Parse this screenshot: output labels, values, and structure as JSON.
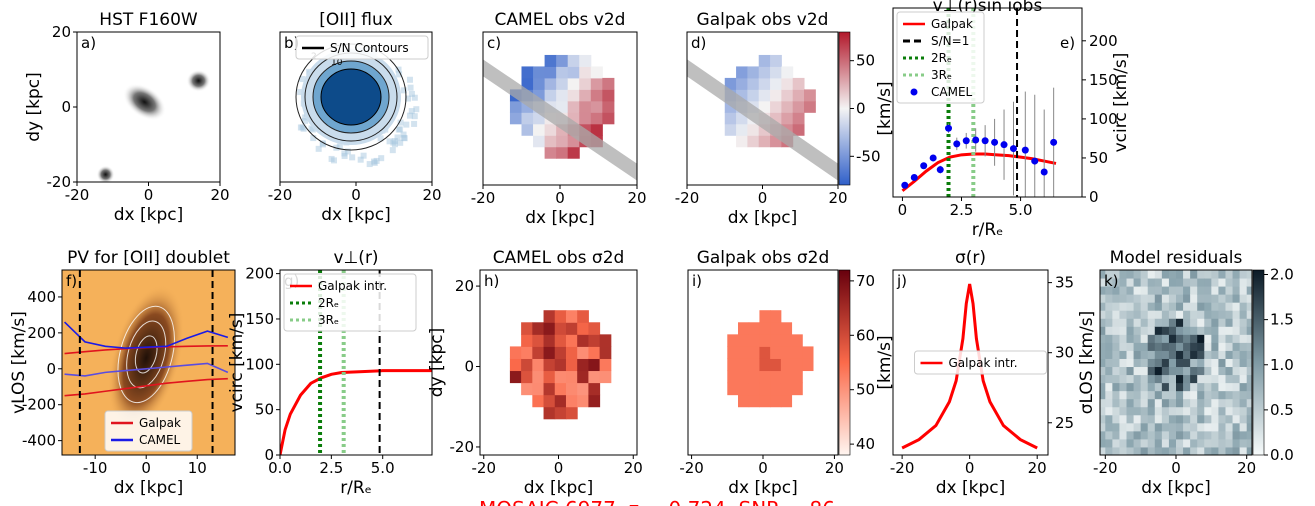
{
  "caption": "MOSAIC 6977, z = 0.724, SNR = 86",
  "chart_data": [
    {
      "type": "image",
      "panel_label": "a)",
      "title": "HST F160W",
      "xlabel": "dx [kpc]",
      "ylabel": "dy [kpc]",
      "xlim": [
        -20,
        20
      ],
      "ylim": [
        -20,
        20
      ],
      "xticks": [
        -20,
        0,
        20
      ],
      "yticks": [
        -20,
        0,
        20
      ]
    },
    {
      "type": "image",
      "panel_label": "b)",
      "title": "[OII] flux",
      "xlabel": "dx [kpc]",
      "xlim": [
        -20,
        20
      ],
      "ylim": [
        -20,
        20
      ],
      "xticks": [
        -20,
        0,
        20
      ],
      "contour_labels": [
        "2",
        "10"
      ],
      "legend": "upper right",
      "series": [
        {
          "name": "S/N Contours",
          "color": "black",
          "kind": "line",
          "style": "solid"
        }
      ]
    },
    {
      "type": "image",
      "panel_label": "c)",
      "title": "CAMEL obs v2d",
      "xlabel": "dx [kpc]",
      "xlim": [
        -20,
        20
      ],
      "ylim": [
        -20,
        20
      ],
      "xticks": [
        -20,
        0,
        20
      ]
    },
    {
      "type": "image",
      "panel_label": "d)",
      "title": "Galpak obs v2d",
      "xlabel": "dx [kpc]",
      "xlim": [
        -20,
        20
      ],
      "ylim": [
        -20,
        20
      ],
      "xticks": [
        -20,
        0,
        20
      ],
      "colorbar": {
        "label": "[km/s]",
        "lim": [
          -80,
          80
        ],
        "ticks": [
          50,
          0,
          -50
        ],
        "colors": [
          "#2f5fc9",
          "#f4f4f4",
          "#b2182b"
        ]
      }
    },
    {
      "type": "line",
      "panel_label": "e)",
      "title": "v⊥(r)sin iobs",
      "xlabel": "r/Rₑ",
      "ylabel": "vcirc [km/s]",
      "yaxis": "right",
      "xlim": [
        -0.4,
        7.6
      ],
      "ylim": [
        0,
        242
      ],
      "xticks": [
        0,
        2.5,
        {
          "value": 5,
          "label": "5.0"
        }
      ],
      "yticks": [
        0,
        50,
        100,
        150,
        200
      ],
      "legend": "upper left",
      "series": [
        {
          "name": "Galpak",
          "color": "#ff0000",
          "kind": "line",
          "style": "solid",
          "x": [
            0,
            0.5,
            1,
            1.5,
            2,
            2.5,
            3,
            3.5,
            4,
            4.5,
            5,
            5.5,
            6,
            6.5
          ],
          "values": [
            8,
            20,
            33,
            44,
            51,
            54,
            55,
            55,
            54,
            53,
            51,
            49,
            46,
            43
          ]
        },
        {
          "name": "S/N=1",
          "color": "black",
          "kind": "vline",
          "style": "dashed",
          "x": 4.85
        },
        {
          "name": "2Rₑ",
          "color": "#0a7d0a",
          "kind": "vline",
          "style": "dotted",
          "x": 1.95
        },
        {
          "name": "3Rₑ",
          "color": "#88cc88",
          "kind": "vline",
          "style": "dotted",
          "x": 3.0
        },
        {
          "name": "CAMEL",
          "color": "#0000ee",
          "kind": "points",
          "x": [
            0.1,
            0.5,
            0.9,
            1.3,
            1.6,
            1.95,
            2.3,
            2.7,
            3.1,
            3.5,
            3.9,
            4.3,
            4.7,
            5.2,
            5.6,
            6.0,
            6.4
          ],
          "values": [
            15,
            25,
            40,
            50,
            35,
            88,
            68,
            72,
            73,
            72,
            70,
            67,
            62,
            60,
            46,
            32,
            70
          ],
          "errors": [
            3,
            3,
            4,
            4,
            5,
            6,
            8,
            10,
            15,
            20,
            30,
            45,
            60,
            75,
            85,
            80,
            70
          ]
        }
      ]
    },
    {
      "type": "pv",
      "panel_label": "f)",
      "title": "PV for [OII] doublet",
      "xlabel": "dx [kpc]",
      "ylabel": "vLOS [km/s]",
      "xlim": [
        -16.5,
        17.4
      ],
      "ylim": [
        -480,
        550
      ],
      "xticks": [
        -10,
        0,
        10
      ],
      "yticks": [
        -400,
        -200,
        0,
        200,
        400
      ],
      "legend": "lower center",
      "series": [
        {
          "name": "Galpak",
          "color": "#e0141e",
          "kind": "line",
          "style": "solid",
          "x": [
            -16,
            -12,
            -8,
            -4,
            0,
            4,
            8,
            12,
            16
          ],
          "values": [
            85,
            95,
            105,
            112,
            118,
            122,
            125,
            127,
            128
          ]
        },
        {
          "color": "#e0141e",
          "kind": "line",
          "style": "solid",
          "x": [
            -16,
            -12,
            -8,
            -4,
            0,
            4,
            8,
            12,
            16
          ],
          "values": [
            -150,
            -140,
            -125,
            -110,
            -95,
            -80,
            -70,
            -60,
            -55
          ]
        },
        {
          "name": "CAMEL",
          "color": "#1a1ae6",
          "kind": "line",
          "style": "solid",
          "x": [
            -16,
            -12,
            -8,
            -4,
            0,
            4,
            8,
            12,
            16
          ],
          "values": [
            260,
            150,
            125,
            115,
            120,
            125,
            170,
            210,
            175
          ]
        },
        {
          "color": "#5a4ce0",
          "kind": "line",
          "style": "solid",
          "x": [
            -16,
            -12,
            -8,
            -4,
            0,
            4,
            8,
            12,
            16
          ],
          "values": [
            -30,
            -40,
            -20,
            -10,
            0,
            10,
            20,
            30,
            -20
          ]
        },
        {
          "color": "black",
          "kind": "vline",
          "style": "dashed",
          "x": -13
        },
        {
          "color": "black",
          "kind": "vline",
          "style": "dashed",
          "x": 13
        }
      ]
    },
    {
      "type": "line",
      "panel_label": "g)",
      "title": "v⊥(r)",
      "xlabel": "r/Rₑ",
      "ylabel": "vcirc [km/s]",
      "xlim": [
        0,
        7.4
      ],
      "ylim": [
        0,
        204
      ],
      "xticks": [
        {
          "value": 0,
          "label": "0.0"
        },
        2.5,
        {
          "value": 5,
          "label": "5.0"
        }
      ],
      "yticks": [
        0,
        50,
        100,
        150,
        200
      ],
      "legend": "upper left",
      "series": [
        {
          "name": "Galpak intr.",
          "color": "#ff0000",
          "kind": "line",
          "style": "solid",
          "x": [
            0,
            0.25,
            0.5,
            1,
            1.5,
            2,
            2.5,
            3,
            4,
            5,
            6,
            7.4
          ],
          "values": [
            0,
            28,
            45,
            66,
            79,
            85,
            89,
            91,
            92,
            93,
            93,
            93
          ]
        },
        {
          "name": "2Rₑ",
          "color": "#0a7d0a",
          "kind": "vline",
          "style": "dotted",
          "x": 1.95
        },
        {
          "name": "3Rₑ",
          "color": "#88cc88",
          "kind": "vline",
          "style": "dotted",
          "x": 3.1
        },
        {
          "color": "black",
          "kind": "vline",
          "style": "dashed",
          "x": 4.85
        }
      ]
    },
    {
      "type": "image",
      "panel_label": "h)",
      "title": "CAMEL obs σ2d",
      "xlabel": "dx [kpc]",
      "ylabel": "dy [kpc]",
      "xlim": [
        -21,
        21
      ],
      "ylim": [
        -22,
        24
      ],
      "xticks": [
        -20,
        0,
        20
      ],
      "yticks": [
        -20,
        0,
        20
      ]
    },
    {
      "type": "image",
      "panel_label": "i)",
      "title": "Galpak obs σ2d",
      "xlabel": "dx [kpc]",
      "xlim": [
        -21,
        21
      ],
      "ylim": [
        -22,
        24
      ],
      "xticks": [
        -20,
        0,
        20
      ],
      "colorbar": {
        "label": "[km/s]",
        "lim": [
          38,
          72
        ],
        "ticks": [
          40,
          50,
          60,
          70
        ],
        "colors": [
          "#fff5f0",
          "#fb6a4a",
          "#67000d"
        ]
      }
    },
    {
      "type": "line",
      "panel_label": "j)",
      "title": "σ(r)",
      "xlabel": "dx [kpc]",
      "ylabel": "σLOS [km/s]",
      "yaxis": "right",
      "xlim": [
        -22.7,
        23.2
      ],
      "ylim": [
        22.7,
        35.9
      ],
      "xticks": [
        -20,
        0,
        20
      ],
      "yticks": [
        25,
        30,
        35
      ],
      "legend": "center",
      "series": [
        {
          "name": "Galpak intr.",
          "color": "#ff0000",
          "kind": "line",
          "style": "solid",
          "x": [
            -20,
            -15,
            -10,
            -6,
            -4,
            -2,
            -1,
            0,
            1,
            2,
            4,
            6,
            10,
            15,
            20
          ],
          "values": [
            23.2,
            23.8,
            24.8,
            26.5,
            28,
            31,
            33.5,
            34.9,
            33.5,
            31,
            28,
            26.5,
            24.8,
            23.8,
            23.2
          ]
        }
      ]
    },
    {
      "type": "image",
      "panel_label": "k)",
      "title": "Model residuals",
      "xlabel": "dx [kpc]",
      "xlim": [
        -21.5,
        21.5
      ],
      "ylim": [
        -22,
        24
      ],
      "xticks": [
        -20,
        0,
        20
      ],
      "colorbar": {
        "lim": [
          0,
          2.05
        ],
        "ticks": [
          {
            "value": 0,
            "label": "0.0"
          },
          0.5,
          {
            "value": 1,
            "label": "1.0"
          },
          1.5,
          {
            "value": 2,
            "label": "2.0"
          }
        ],
        "colors": [
          "#f7fbfb",
          "#7f9aa4",
          "#0b1a26"
        ]
      }
    }
  ]
}
